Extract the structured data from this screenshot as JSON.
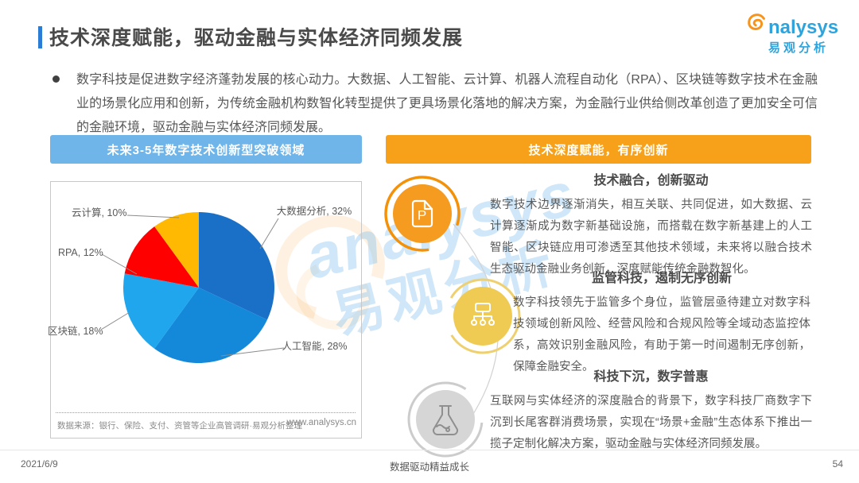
{
  "header": {
    "title": "技术深度赋能，驱动金融与实体经济同频发展"
  },
  "logo": {
    "en": "analysys",
    "cn": "易观分析",
    "blue": "#2FA3DC",
    "orange": "#F7941D"
  },
  "intro": {
    "text": "数字科技是促进数字经济蓬勃发展的核心动力。大数据、人工智能、云计算、机器人流程自动化（RPA）、区块链等数字技术在金融业的场景化应用和创新，为传统金融机构数智化转型提供了更具场景化落地的解决方案，为金融行业供给侧改革创造了更加安全可信的金融环境，驱动金融与实体经济同频发展。"
  },
  "left_panel": {
    "header": "未来3-5年数字技术创新型突破领域",
    "header_color": "#6FB5E9",
    "source": "数据来源：银行、保险、支付、资管等企业高管调研·易观分析整理",
    "website": "www.analysys.cn"
  },
  "chart_data": {
    "type": "pie",
    "title": "未来3-5年数字技术创新型突破领域",
    "start_angle_deg": 0,
    "direction": "clockwise",
    "label_format": "{label}, {value}%",
    "slices": [
      {
        "label": "大数据分析",
        "value": 32,
        "color": "#1A6FC7"
      },
      {
        "label": "人工智能",
        "value": 28,
        "color": "#1489DA"
      },
      {
        "label": "区块链",
        "value": 18,
        "color": "#1FA6EC"
      },
      {
        "label": "RPA",
        "value": 12,
        "color": "#FE0000"
      },
      {
        "label": "云计算",
        "value": 10,
        "color": "#FFB902"
      }
    ]
  },
  "right_panel": {
    "header": "技术深度赋能，有序创新",
    "header_color": "#F7A11A",
    "sections": [
      {
        "icon": "document-p-icon",
        "title": "技术融合，创新驱动",
        "body": "数字技术边界逐渐消失，相互关联、共同促进，如大数据、云计算逐渐成为数字新基础设施，而搭载在数字新基建上的人工智能、区块链应用可渗透至其他技术领域，未来将以融合技术生态驱动金融业务创新，深度赋能传统金融数智化。"
      },
      {
        "icon": "sitemap-icon",
        "title": "监管科技，遏制无序创新",
        "body": "数字科技领先于监管多个身位，监管层亟待建立对数字科技领域创新风险、经营风险和合规风险等全域动态监控体系，高效识别金融风险，有助于第一时间遏制无序创新，保障金融安全。"
      },
      {
        "icon": "flask-icon",
        "title": "科技下沉，数字普惠",
        "body": "互联网与实体经济的深度融合的背景下，数字科技厂商数字下沉到长尾客群消费场景，实现在“场景+金融”生态体系下推出一揽子定制化解决方案，驱动金融与实体经济同频发展。"
      }
    ]
  },
  "watermark": {
    "en": "analysys",
    "cn": "易观分析"
  },
  "page": {
    "date": "2021/6/9",
    "slogan": "数据驱动精益成长",
    "page_number": "54"
  }
}
